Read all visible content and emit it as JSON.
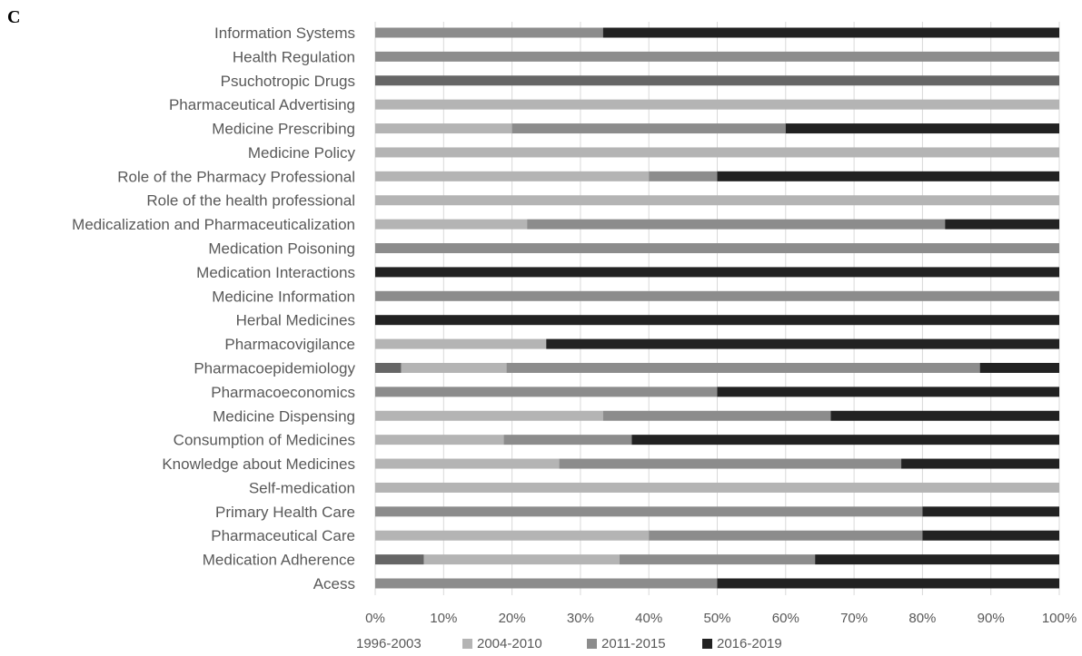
{
  "panel_label": "C",
  "chart_data": {
    "type": "bar",
    "orientation": "horizontal",
    "stacked": true,
    "normalized": true,
    "categories": [
      "Information Systems",
      "Health Regulation",
      "Psuchotropic Drugs",
      "Pharmaceutical Advertising",
      "Medicine Prescribing",
      "Medicine Policy",
      "Role of the Pharmacy Professional",
      "Role of the health professional",
      "Medicalization and Pharmaceuticalization",
      "Medication Poisoning",
      "Medication Interactions",
      "Medicine Information",
      "Herbal Medicines",
      "Pharmacovigilance",
      "Pharmacoepidemiology",
      "Pharmacoeconomics",
      "Medicine Dispensing",
      "Consumption of Medicines",
      "Knowledge about Medicines",
      "Self-medication",
      "Primary Health Care",
      "Pharmaceutical Care",
      "Medication Adherence",
      "Acess"
    ],
    "series": [
      {
        "name": "1996-2003",
        "color": "#666666",
        "values": [
          0,
          0,
          100,
          0,
          0,
          0,
          0,
          0,
          0,
          0,
          0,
          0,
          0,
          0,
          3.8,
          0,
          0,
          0,
          0,
          0,
          0,
          0,
          7.1,
          0
        ]
      },
      {
        "name": "2004-2010",
        "color": "#b4b4b4",
        "values": [
          0,
          0,
          0,
          100,
          20,
          100,
          40,
          100,
          22.2,
          0,
          0,
          0,
          0,
          25,
          15.4,
          0,
          33.3,
          18.8,
          26.9,
          100,
          0,
          40,
          28.6,
          0
        ]
      },
      {
        "name": "2011-2015",
        "color": "#8c8c8c",
        "values": [
          33.3,
          100,
          0,
          0,
          40,
          0,
          10,
          0,
          61.1,
          100,
          0,
          100,
          0,
          0,
          69.2,
          50,
          33.3,
          18.7,
          50,
          0,
          80,
          40,
          28.6,
          50
        ]
      },
      {
        "name": "2016-2019",
        "color": "#222222",
        "values": [
          66.7,
          0,
          0,
          0,
          40,
          0,
          50,
          0,
          16.7,
          0,
          100,
          0,
          100,
          75,
          11.6,
          50,
          33.4,
          62.5,
          23.1,
          0,
          20,
          20,
          35.7,
          50
        ]
      }
    ],
    "xlim": [
      0,
      100
    ],
    "x_ticks": [
      "0%",
      "10%",
      "20%",
      "30%",
      "40%",
      "50%",
      "60%",
      "70%",
      "80%",
      "90%",
      "100%"
    ],
    "grid": "vertical",
    "legend_position": "bottom",
    "title": "",
    "xlabel": "",
    "ylabel": ""
  }
}
